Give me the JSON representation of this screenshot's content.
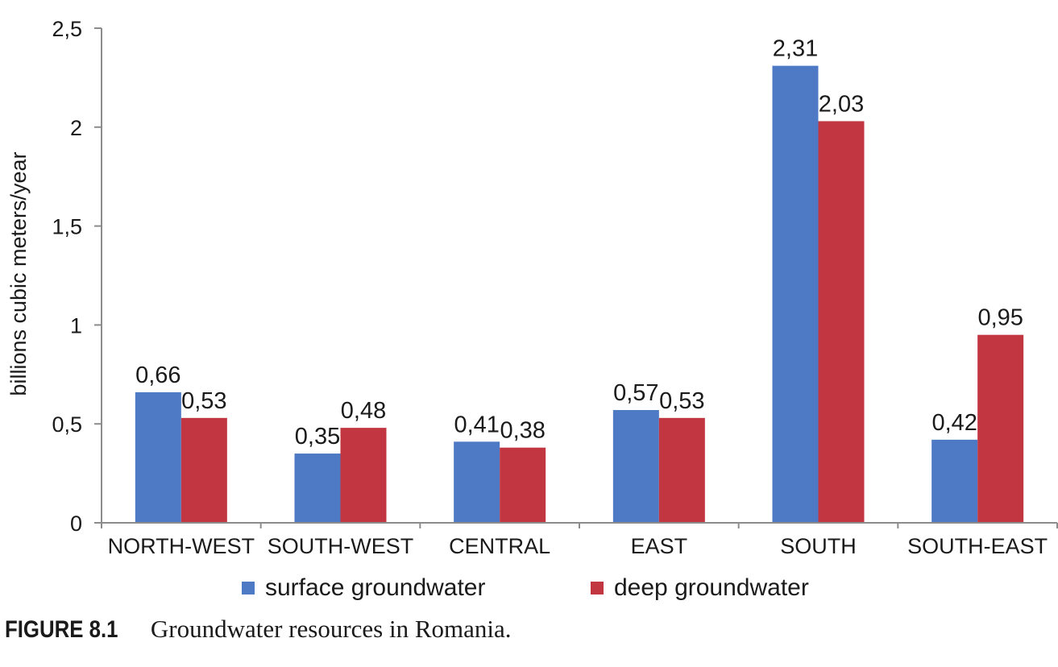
{
  "chart_data": {
    "type": "bar",
    "title": "",
    "xlabel": "",
    "ylabel": "billions cubic meters/year",
    "ylim": [
      0,
      2.5
    ],
    "yticks": [
      0,
      0.5,
      1,
      1.5,
      2,
      2.5
    ],
    "ytick_labels": [
      "0",
      "0,5",
      "1",
      "1,5",
      "2",
      "2,5"
    ],
    "grid": false,
    "legend_position": "bottom",
    "categories": [
      "NORTH-WEST",
      "SOUTH-WEST",
      "CENTRAL",
      "EAST",
      "SOUTH",
      "SOUTH-EAST"
    ],
    "series": [
      {
        "name": "surface groundwater",
        "color": "#4E79C4",
        "values": [
          0.66,
          0.35,
          0.41,
          0.57,
          2.31,
          0.42
        ],
        "labels": [
          "0,66",
          "0,35",
          "0,41",
          "0,57",
          "2,31",
          "0,42"
        ]
      },
      {
        "name": "deep groundwater",
        "color": "#C13641",
        "values": [
          0.53,
          0.48,
          0.38,
          0.53,
          2.03,
          0.95
        ],
        "labels": [
          "0,53",
          "0,48",
          "0,38",
          "0,53",
          "2,03",
          "0,95"
        ]
      }
    ]
  },
  "caption": {
    "number": "FIGURE 8.1",
    "text": "Groundwater resources in Romania."
  }
}
